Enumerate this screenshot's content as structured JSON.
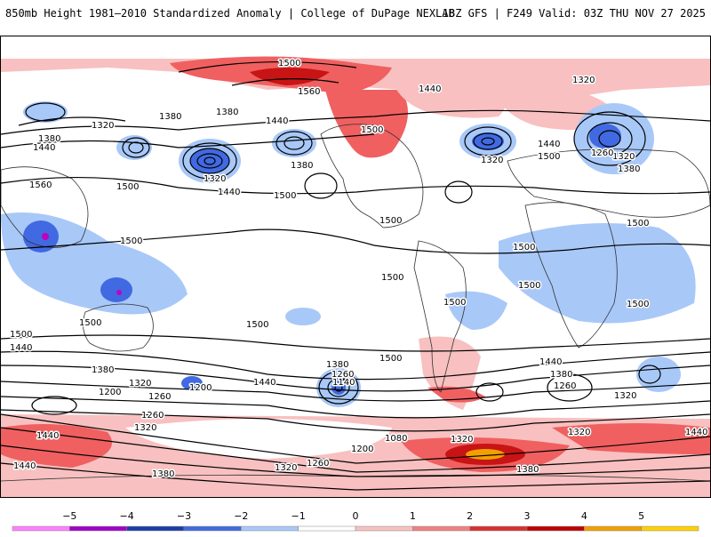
{
  "header": {
    "left_title": "850mb Height 1981–2010 Standardized Anomaly | College of DuPage NEXLAB",
    "right_title": "18Z GFS | F249 Valid: 03Z THU NOV 27 2025"
  },
  "map": {
    "contour_labels": [
      "1500",
      "1560",
      "1440",
      "1320",
      "1380",
      "1380",
      "1440",
      "1320",
      "1380",
      "1440",
      "1560",
      "1500",
      "1320",
      "1440",
      "1500",
      "1500",
      "1500",
      "1320",
      "1440",
      "1500",
      "1380",
      "1320",
      "1260",
      "1380",
      "1500",
      "1500",
      "1500",
      "1500",
      "1500",
      "1500",
      "1500",
      "1500",
      "1500",
      "1440",
      "1500",
      "1380",
      "1200",
      "1320",
      "1260",
      "1440",
      "1380",
      "1260",
      "1140",
      "1200",
      "1500",
      "1440",
      "1380",
      "1260",
      "1320",
      "1260",
      "1320",
      "1440",
      "1440",
      "1200",
      "1080",
      "1320",
      "1320",
      "1380",
      "1320",
      "1260",
      "1380",
      "1440"
    ],
    "anomaly_colors": {
      "strong_negative": "#1e3ca8",
      "negative": "#4169e1",
      "weak_negative": "#a8c8f8",
      "weak_positive": "#f8c0c0",
      "positive": "#f06060",
      "strong_positive": "#c81414",
      "extreme_positive": "#f0a000",
      "extreme_negative": "#c000c0"
    }
  },
  "colorbar": {
    "ticks": [
      "−5",
      "−4",
      "−3",
      "−2",
      "−1",
      "0",
      "1",
      "2",
      "3",
      "4",
      "5"
    ],
    "colors": [
      "#ff80ff",
      "#a000c8",
      "#1e3ca8",
      "#4169e1",
      "#a8c8f8",
      "#ffffff",
      "#f8c0c0",
      "#f08080",
      "#d83030",
      "#c00000",
      "#f0a000",
      "#ffd000"
    ]
  }
}
